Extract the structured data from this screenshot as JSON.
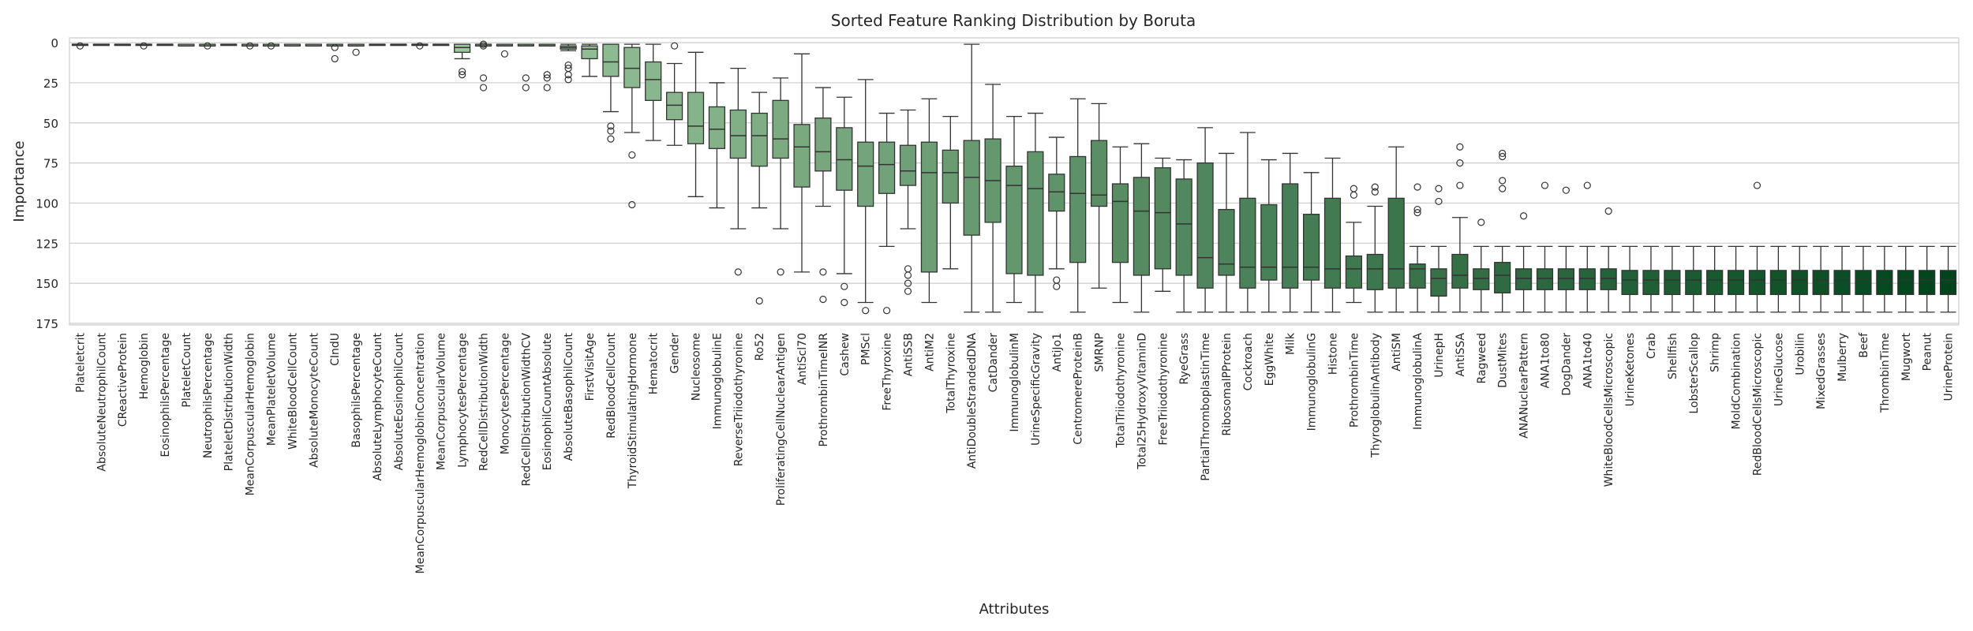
{
  "chart_data": {
    "type": "box",
    "title": "Sorted Feature Ranking Distribution by Boruta",
    "xlabel": "Attributes",
    "ylabel": "Importance",
    "ylim": [
      176,
      -3
    ],
    "y_inverted": true,
    "yticks": [
      0,
      25,
      50,
      75,
      100,
      125,
      150,
      175
    ],
    "grid": true,
    "palette": {
      "light": "#c7e9c0",
      "dark": "#00441b",
      "edge": "#333333",
      "grid": "#cccccc"
    },
    "boxes": [
      {
        "name": "Plateletcrit",
        "q1": 1,
        "med": 1,
        "q3": 1,
        "wlo": 1,
        "whi": 1,
        "outliers": [
          2
        ]
      },
      {
        "name": "AbsoluteNeutrophilCount",
        "q1": 1,
        "med": 1,
        "q3": 1,
        "wlo": 1,
        "whi": 1,
        "outliers": []
      },
      {
        "name": "CReactiveProtein",
        "q1": 1,
        "med": 1,
        "q3": 1,
        "wlo": 1,
        "whi": 1,
        "outliers": []
      },
      {
        "name": "Hemoglobin",
        "q1": 1,
        "med": 1,
        "q3": 1,
        "wlo": 1,
        "whi": 1,
        "outliers": [
          2
        ]
      },
      {
        "name": "EosinophilsPercentage",
        "q1": 1,
        "med": 1,
        "q3": 1,
        "wlo": 1,
        "whi": 1,
        "outliers": []
      },
      {
        "name": "PlateletCount",
        "q1": 1,
        "med": 2,
        "q3": 2,
        "wlo": 1,
        "whi": 2,
        "outliers": []
      },
      {
        "name": "NeutrophilsPercentage",
        "q1": 1,
        "med": 2,
        "q3": 2,
        "wlo": 1,
        "whi": 2,
        "outliers": [
          2
        ]
      },
      {
        "name": "PlateletDistributionWidth",
        "q1": 1,
        "med": 1,
        "q3": 1,
        "wlo": 1,
        "whi": 1,
        "outliers": []
      },
      {
        "name": "MeanCorpuscularHemoglobin",
        "q1": 1,
        "med": 2,
        "q3": 2,
        "wlo": 1,
        "whi": 2,
        "outliers": [
          2
        ]
      },
      {
        "name": "MeanPlateletVolume",
        "q1": 1,
        "med": 2,
        "q3": 2,
        "wlo": 1,
        "whi": 2,
        "outliers": [
          2
        ]
      },
      {
        "name": "WhiteBloodCellCount",
        "q1": 1,
        "med": 2,
        "q3": 2,
        "wlo": 1,
        "whi": 2,
        "outliers": []
      },
      {
        "name": "AbsoluteMonocyteCount",
        "q1": 1,
        "med": 2,
        "q3": 2,
        "wlo": 1,
        "whi": 2,
        "outliers": []
      },
      {
        "name": "CIndU",
        "q1": 1,
        "med": 2,
        "q3": 2,
        "wlo": 1,
        "whi": 2,
        "outliers": [
          3,
          10
        ]
      },
      {
        "name": "BasophilsPercentage",
        "q1": 1,
        "med": 2,
        "q3": 2,
        "wlo": 1,
        "whi": 2,
        "outliers": [
          6
        ]
      },
      {
        "name": "AbsoluteLymphocyteCount",
        "q1": 1,
        "med": 1,
        "q3": 1,
        "wlo": 1,
        "whi": 1,
        "outliers": []
      },
      {
        "name": "AbsoluteEosinophilCount",
        "q1": 1,
        "med": 1,
        "q3": 1,
        "wlo": 1,
        "whi": 1,
        "outliers": []
      },
      {
        "name": "MeanCorpuscularHemoglobinConcentration",
        "q1": 1,
        "med": 1,
        "q3": 1,
        "wlo": 1,
        "whi": 1,
        "outliers": [
          2
        ]
      },
      {
        "name": "MeanCorpuscularVolume",
        "q1": 1,
        "med": 1,
        "q3": 1,
        "wlo": 1,
        "whi": 1,
        "outliers": []
      },
      {
        "name": "LymphocytesPercentage",
        "q1": 1,
        "med": 3,
        "q3": 6,
        "wlo": 1,
        "whi": 10,
        "outliers": [
          18,
          20
        ]
      },
      {
        "name": "RedCellDistributionWidth",
        "q1": 1,
        "med": 2,
        "q3": 2,
        "wlo": 1,
        "whi": 2,
        "outliers": [
          1,
          2,
          22,
          28
        ]
      },
      {
        "name": "MonocytesPercentage",
        "q1": 1,
        "med": 2,
        "q3": 2,
        "wlo": 1,
        "whi": 2,
        "outliers": [
          7
        ]
      },
      {
        "name": "RedCellDistributionWidthCV",
        "q1": 1,
        "med": 2,
        "q3": 2,
        "wlo": 1,
        "whi": 2,
        "outliers": [
          22,
          28
        ]
      },
      {
        "name": "EosinophilCountAbsolute",
        "q1": 1,
        "med": 2,
        "q3": 2,
        "wlo": 1,
        "whi": 2,
        "outliers": [
          20,
          22,
          28
        ]
      },
      {
        "name": "AbsoluteBasophilCount",
        "q1": 2,
        "med": 3,
        "q3": 4,
        "wlo": 1,
        "whi": 5,
        "outliers": [
          14,
          16,
          20,
          23
        ]
      },
      {
        "name": "FirstVisitAge",
        "q1": 2,
        "med": 4,
        "q3": 10,
        "wlo": 1,
        "whi": 21,
        "outliers": []
      },
      {
        "name": "RedBloodCellCount",
        "q1": 1,
        "med": 12,
        "q3": 21,
        "wlo": 1,
        "whi": 43,
        "outliers": [
          52,
          55,
          60
        ]
      },
      {
        "name": "ThyroidStimulatingHormone",
        "q1": 3,
        "med": 16,
        "q3": 28,
        "wlo": 1,
        "whi": 56,
        "outliers": [
          70,
          101
        ]
      },
      {
        "name": "Hematocrit",
        "q1": 12,
        "med": 23,
        "q3": 36,
        "wlo": 1,
        "whi": 61,
        "outliers": []
      },
      {
        "name": "Gender",
        "q1": 31,
        "med": 39,
        "q3": 48,
        "wlo": 13,
        "whi": 64,
        "outliers": [
          2
        ]
      },
      {
        "name": "Nucleosome",
        "q1": 31,
        "med": 52,
        "q3": 63,
        "wlo": 6,
        "whi": 96,
        "outliers": []
      },
      {
        "name": "ImmunoglobulinE",
        "q1": 40,
        "med": 54,
        "q3": 66,
        "wlo": 25,
        "whi": 103,
        "outliers": []
      },
      {
        "name": "ReverseTriiodothyronine",
        "q1": 42,
        "med": 58,
        "q3": 72,
        "wlo": 16,
        "whi": 116,
        "outliers": [
          143
        ]
      },
      {
        "name": "Ro52",
        "q1": 44,
        "med": 58,
        "q3": 77,
        "wlo": 31,
        "whi": 103,
        "outliers": [
          161
        ]
      },
      {
        "name": "ProliferatingCellNuclearAntigen",
        "q1": 36,
        "med": 60,
        "q3": 72,
        "wlo": 22,
        "whi": 116,
        "outliers": [
          143
        ]
      },
      {
        "name": "AntiScl70",
        "q1": 51,
        "med": 65,
        "q3": 90,
        "wlo": 7,
        "whi": 143,
        "outliers": []
      },
      {
        "name": "ProthrombinTimeINR",
        "q1": 47,
        "med": 68,
        "q3": 80,
        "wlo": 28,
        "whi": 102,
        "outliers": [
          143,
          160
        ]
      },
      {
        "name": "Cashew",
        "q1": 53,
        "med": 73,
        "q3": 92,
        "wlo": 34,
        "whi": 144,
        "outliers": [
          152,
          162
        ]
      },
      {
        "name": "PMScl",
        "q1": 62,
        "med": 77,
        "q3": 102,
        "wlo": 23,
        "whi": 162,
        "outliers": [
          167
        ]
      },
      {
        "name": "FreeThyroxine",
        "q1": 62,
        "med": 76,
        "q3": 94,
        "wlo": 44,
        "whi": 127,
        "outliers": [
          167
        ]
      },
      {
        "name": "AntiSSB",
        "q1": 64,
        "med": 80,
        "q3": 89,
        "wlo": 42,
        "whi": 116,
        "outliers": [
          141,
          145,
          150,
          155
        ]
      },
      {
        "name": "AntiM2",
        "q1": 62,
        "med": 81,
        "q3": 143,
        "wlo": 35,
        "whi": 162,
        "outliers": []
      },
      {
        "name": "TotalThyroxine",
        "q1": 67,
        "med": 81,
        "q3": 100,
        "wlo": 46,
        "whi": 141,
        "outliers": []
      },
      {
        "name": "AntiDoubleStrandedDNA",
        "q1": 61,
        "med": 84,
        "q3": 120,
        "wlo": 1,
        "whi": 168,
        "outliers": []
      },
      {
        "name": "CatDander",
        "q1": 60,
        "med": 86,
        "q3": 112,
        "wlo": 26,
        "whi": 168,
        "outliers": []
      },
      {
        "name": "ImmunoglobulinM",
        "q1": 77,
        "med": 89,
        "q3": 144,
        "wlo": 46,
        "whi": 162,
        "outliers": []
      },
      {
        "name": "UrineSpecificGravity",
        "q1": 68,
        "med": 91,
        "q3": 145,
        "wlo": 44,
        "whi": 168,
        "outliers": []
      },
      {
        "name": "AntiJo1",
        "q1": 82,
        "med": 93,
        "q3": 105,
        "wlo": 59,
        "whi": 141,
        "outliers": [
          148,
          152
        ]
      },
      {
        "name": "CentromereProteinB",
        "q1": 71,
        "med": 94,
        "q3": 137,
        "wlo": 35,
        "whi": 168,
        "outliers": []
      },
      {
        "name": "SMRNP",
        "q1": 61,
        "med": 95,
        "q3": 102,
        "wlo": 38,
        "whi": 153,
        "outliers": []
      },
      {
        "name": "TotalTriiodothyronine",
        "q1": 88,
        "med": 99,
        "q3": 137,
        "wlo": 65,
        "whi": 162,
        "outliers": []
      },
      {
        "name": "Total25HydroxyVitaminD",
        "q1": 84,
        "med": 105,
        "q3": 145,
        "wlo": 63,
        "whi": 168,
        "outliers": []
      },
      {
        "name": "FreeTriiodothyronine",
        "q1": 78,
        "med": 106,
        "q3": 141,
        "wlo": 72,
        "whi": 155,
        "outliers": []
      },
      {
        "name": "RyeGrass",
        "q1": 85,
        "med": 113,
        "q3": 145,
        "wlo": 73,
        "whi": 168,
        "outliers": []
      },
      {
        "name": "PartialThromboplastinTime",
        "q1": 75,
        "med": 134,
        "q3": 153,
        "wlo": 53,
        "whi": 168,
        "outliers": []
      },
      {
        "name": "RibosomalPProtein",
        "q1": 104,
        "med": 138,
        "q3": 145,
        "wlo": 69,
        "whi": 168,
        "outliers": []
      },
      {
        "name": "Cockroach",
        "q1": 97,
        "med": 140,
        "q3": 153,
        "wlo": 56,
        "whi": 168,
        "outliers": []
      },
      {
        "name": "EggWhite",
        "q1": 101,
        "med": 140,
        "q3": 148,
        "wlo": 73,
        "whi": 168,
        "outliers": []
      },
      {
        "name": "Milk",
        "q1": 88,
        "med": 140,
        "q3": 153,
        "wlo": 69,
        "whi": 168,
        "outliers": []
      },
      {
        "name": "ImmunoglobulinG",
        "q1": 107,
        "med": 140,
        "q3": 148,
        "wlo": 81,
        "whi": 168,
        "outliers": []
      },
      {
        "name": "Histone",
        "q1": 97,
        "med": 141,
        "q3": 153,
        "wlo": 72,
        "whi": 168,
        "outliers": []
      },
      {
        "name": "ProthrombinTime",
        "q1": 133,
        "med": 141,
        "q3": 153,
        "wlo": 112,
        "whi": 162,
        "outliers": [
          91,
          95
        ]
      },
      {
        "name": "ThyroglobulinAntibody",
        "q1": 132,
        "med": 141,
        "q3": 154,
        "wlo": 102,
        "whi": 168,
        "outliers": [
          90,
          93
        ]
      },
      {
        "name": "AntiSM",
        "q1": 97,
        "med": 141,
        "q3": 153,
        "wlo": 65,
        "whi": 168,
        "outliers": []
      },
      {
        "name": "ImmunoglobulinA",
        "q1": 138,
        "med": 141,
        "q3": 153,
        "wlo": 127,
        "whi": 168,
        "outliers": [
          90,
          104,
          106
        ]
      },
      {
        "name": "UrinepH",
        "q1": 141,
        "med": 147,
        "q3": 158,
        "wlo": 127,
        "whi": 168,
        "outliers": [
          91,
          99
        ]
      },
      {
        "name": "AntiSSA",
        "q1": 132,
        "med": 145,
        "q3": 153,
        "wlo": 109,
        "whi": 168,
        "outliers": [
          65,
          75,
          89
        ]
      },
      {
        "name": "Ragweed",
        "q1": 141,
        "med": 147,
        "q3": 154,
        "wlo": 127,
        "whi": 168,
        "outliers": [
          112
        ]
      },
      {
        "name": "DustMites",
        "q1": 137,
        "med": 145,
        "q3": 156,
        "wlo": 127,
        "whi": 168,
        "outliers": [
          69,
          71,
          86,
          91
        ]
      },
      {
        "name": "ANANuclearPattern",
        "q1": 141,
        "med": 147,
        "q3": 154,
        "wlo": 127,
        "whi": 168,
        "outliers": [
          108
        ]
      },
      {
        "name": "ANA1to80",
        "q1": 141,
        "med": 147,
        "q3": 154,
        "wlo": 127,
        "whi": 168,
        "outliers": [
          89
        ]
      },
      {
        "name": "DogDander",
        "q1": 141,
        "med": 147,
        "q3": 154,
        "wlo": 127,
        "whi": 168,
        "outliers": [
          92
        ]
      },
      {
        "name": "ANA1to40",
        "q1": 141,
        "med": 147,
        "q3": 154,
        "wlo": 127,
        "whi": 168,
        "outliers": [
          89
        ]
      },
      {
        "name": "WhiteBloodCellsMicroscopic",
        "q1": 141,
        "med": 147,
        "q3": 154,
        "wlo": 127,
        "whi": 168,
        "outliers": [
          105
        ]
      },
      {
        "name": "UrineKetones",
        "q1": 142,
        "med": 148,
        "q3": 157,
        "wlo": 127,
        "whi": 168,
        "outliers": []
      },
      {
        "name": "Crab",
        "q1": 142,
        "med": 148,
        "q3": 157,
        "wlo": 127,
        "whi": 168,
        "outliers": []
      },
      {
        "name": "Shellfish",
        "q1": 142,
        "med": 148,
        "q3": 157,
        "wlo": 127,
        "whi": 168,
        "outliers": []
      },
      {
        "name": "LobsterScallop",
        "q1": 142,
        "med": 148,
        "q3": 157,
        "wlo": 127,
        "whi": 168,
        "outliers": []
      },
      {
        "name": "Shrimp",
        "q1": 142,
        "med": 148,
        "q3": 157,
        "wlo": 127,
        "whi": 168,
        "outliers": []
      },
      {
        "name": "MoldCombination",
        "q1": 142,
        "med": 148,
        "q3": 157,
        "wlo": 127,
        "whi": 168,
        "outliers": []
      },
      {
        "name": "RedBloodCellsMicroscopic",
        "q1": 142,
        "med": 148,
        "q3": 157,
        "wlo": 127,
        "whi": 168,
        "outliers": [
          89
        ]
      },
      {
        "name": "UrineGlucose",
        "q1": 142,
        "med": 148,
        "q3": 157,
        "wlo": 127,
        "whi": 168,
        "outliers": []
      },
      {
        "name": "Urobilin",
        "q1": 142,
        "med": 148,
        "q3": 157,
        "wlo": 127,
        "whi": 168,
        "outliers": []
      },
      {
        "name": "MixedGrasses",
        "q1": 142,
        "med": 148,
        "q3": 157,
        "wlo": 127,
        "whi": 168,
        "outliers": []
      },
      {
        "name": "Mulberry",
        "q1": 142,
        "med": 148,
        "q3": 157,
        "wlo": 127,
        "whi": 168,
        "outliers": []
      },
      {
        "name": "Beef",
        "q1": 142,
        "med": 148,
        "q3": 157,
        "wlo": 127,
        "whi": 168,
        "outliers": []
      },
      {
        "name": "ThrombinTime",
        "q1": 142,
        "med": 148,
        "q3": 157,
        "wlo": 127,
        "whi": 168,
        "outliers": []
      },
      {
        "name": "Mugwort",
        "q1": 142,
        "med": 148,
        "q3": 157,
        "wlo": 127,
        "whi": 168,
        "outliers": []
      },
      {
        "name": "Peanut",
        "q1": 142,
        "med": 148,
        "q3": 157,
        "wlo": 127,
        "whi": 168,
        "outliers": []
      },
      {
        "name": "UrineProtein",
        "q1": 142,
        "med": 148,
        "q3": 157,
        "wlo": 127,
        "whi": 168,
        "outliers": []
      }
    ]
  }
}
